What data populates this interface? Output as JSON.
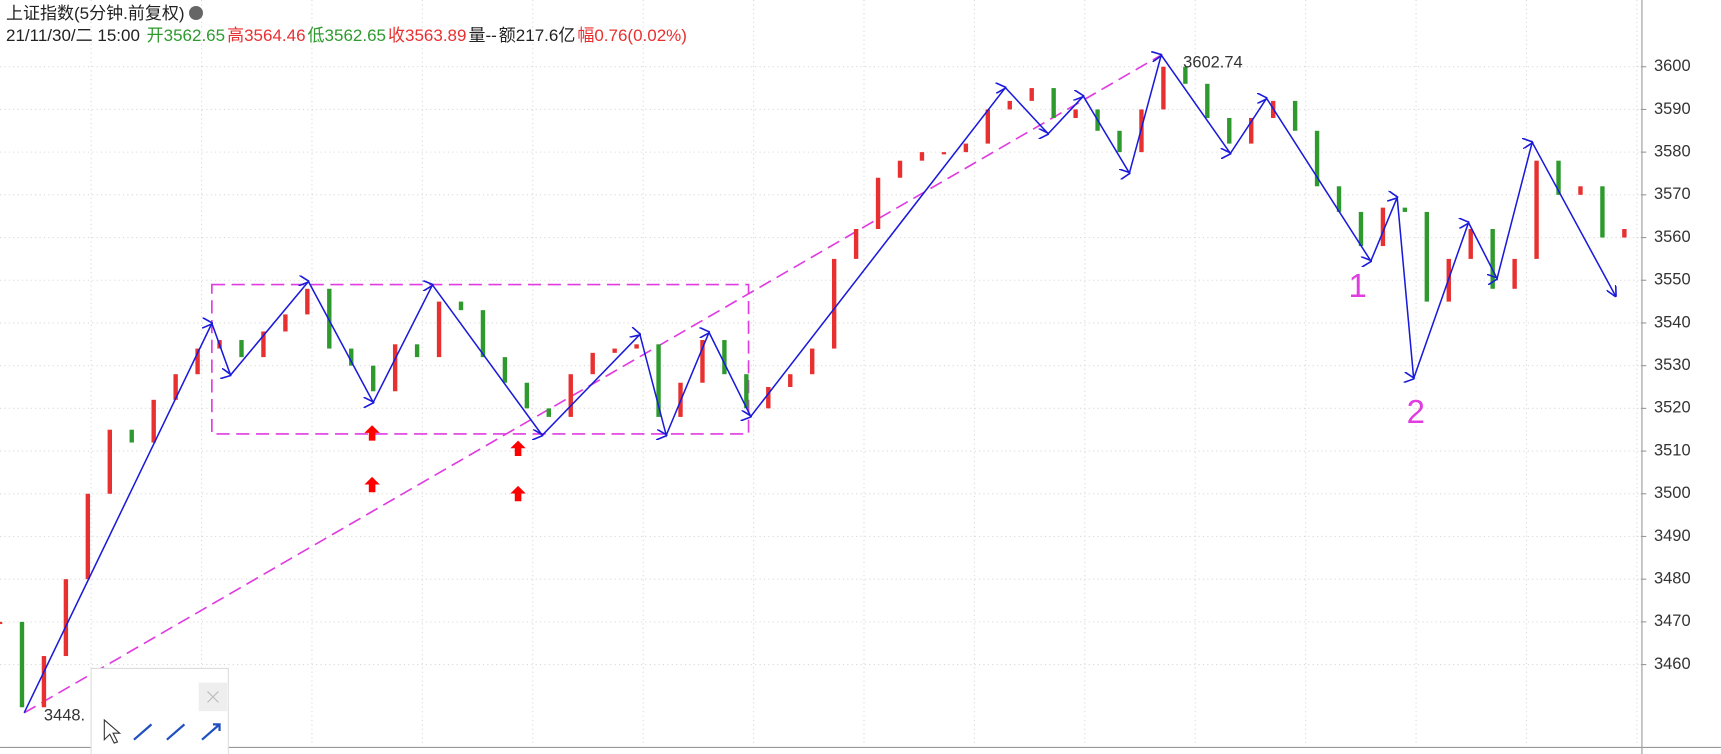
{
  "header": {
    "title": "上证指数(5分钟.前复权)",
    "datetime": "21/11/30/二 15:00",
    "items": [
      {
        "label": "开",
        "value": "3562.65",
        "color": "#2e9a2e"
      },
      {
        "label": "高",
        "value": "3564.46",
        "color": "#e83030"
      },
      {
        "label": "低",
        "value": "3562.65",
        "color": "#2e9a2e"
      },
      {
        "label": "收",
        "value": "3563.89",
        "color": "#e83030"
      },
      {
        "label": "量",
        "value": "--",
        "color": "#222222"
      },
      {
        "label": "额",
        "value": "217.6亿",
        "color": "#222222"
      },
      {
        "label": "幅",
        "value": "0.76(0.02%)",
        "color": "#e83030"
      }
    ]
  },
  "chart_data": {
    "type": "line",
    "series": [
      {
        "up_color": "#e83030",
        "down_color": "#2e9a2e",
        "x": [
          0,
          2,
          4,
          6,
          8,
          10,
          12,
          14,
          16,
          18,
          20,
          22,
          24,
          26,
          28,
          30,
          32,
          34,
          36,
          38,
          40,
          42,
          44,
          46,
          48,
          50,
          52,
          54,
          56,
          58,
          60,
          62,
          64,
          66,
          68,
          70,
          72,
          74,
          76,
          78,
          80,
          82,
          84,
          86,
          88,
          90,
          92,
          94,
          96,
          98,
          100,
          102,
          104,
          106,
          108,
          110,
          112,
          114,
          116,
          118,
          120,
          122,
          124,
          126,
          128,
          130,
          132,
          134,
          136,
          138,
          140,
          142,
          144,
          146,
          148
        ],
        "values": [
          3470,
          3450,
          3462,
          3480,
          3500,
          3515,
          3512,
          3522,
          3528,
          3534,
          3536,
          3532,
          3538,
          3542,
          3548,
          3534,
          3530,
          3524,
          3535,
          3532,
          3545,
          3543,
          3532,
          3526,
          3520,
          3518,
          3528,
          3533,
          3534,
          3535,
          3518,
          3526,
          3536,
          3528,
          3520,
          3525,
          3528,
          3534,
          3555,
          3562,
          3574,
          3578,
          3580,
          3580,
          3582,
          3590,
          3592,
          3595,
          3588,
          3590,
          3585,
          3580,
          3590,
          3600,
          3596,
          3588,
          3582,
          3588,
          3592,
          3585,
          3572,
          3566,
          3558,
          3567,
          3566,
          3545,
          3555,
          3562,
          3548,
          3555,
          3578,
          3570,
          3572,
          3560,
          3562
        ]
      },
      {
        "color": "#1a1adb",
        "x": [
          2.2,
          19.3,
          21.0,
          28.1,
          34.0,
          39.4,
          49.4,
          58.3,
          60.7,
          64.6,
          68.4,
          91.6,
          95.5,
          98.7,
          102.9,
          105.8,
          112.1,
          115.4,
          124.9,
          127.3,
          128.8,
          133.8,
          136.4,
          139.6,
          147.2
        ],
        "values": [
          3448.7,
          3539.9,
          3527.8,
          3549.7,
          3521.4,
          3548.9,
          3513.7,
          3537.3,
          3513.7,
          3537.8,
          3518.1,
          3595.1,
          3584.3,
          3593.1,
          3575.1,
          3602.74,
          3579.7,
          3592.6,
          3554.5,
          3569.4,
          3527.0,
          3563.5,
          3550.4,
          3582.3,
          3546.3
        ]
      }
    ],
    "xlim": [
      0,
      149.5
    ],
    "ylim": [
      3446,
      3611
    ],
    "yticks": [
      3460,
      3470,
      3480,
      3490,
      3500,
      3510,
      3520,
      3530,
      3540,
      3550,
      3560,
      3570,
      3580,
      3590,
      3600
    ],
    "grid": true,
    "annotation_color": "#e03ce0",
    "box": {
      "x": [
        19.3,
        68.2
      ],
      "y": [
        3549,
        3514
      ]
    },
    "trendline": {
      "x": [
        2.2,
        105.8
      ],
      "y": [
        3448.7,
        3602.74
      ]
    },
    "arrows": {
      "color": "#ff0000",
      "x": [
        33.9,
        33.9,
        47.2,
        47.2
      ],
      "y": [
        3514,
        3501.9,
        3510.4,
        3499.8
      ]
    },
    "labels": [
      {
        "text": "1",
        "x": 123.7,
        "y": 3548.1
      },
      {
        "text": "2",
        "x": 129.0,
        "y": 3518.6
      }
    ],
    "price_labels": [
      {
        "text": "3602.74",
        "x": 107.8,
        "y": 3600.8
      },
      {
        "text": "3448.",
        "x": 4.0,
        "y": 3447.9
      }
    ]
  }
}
